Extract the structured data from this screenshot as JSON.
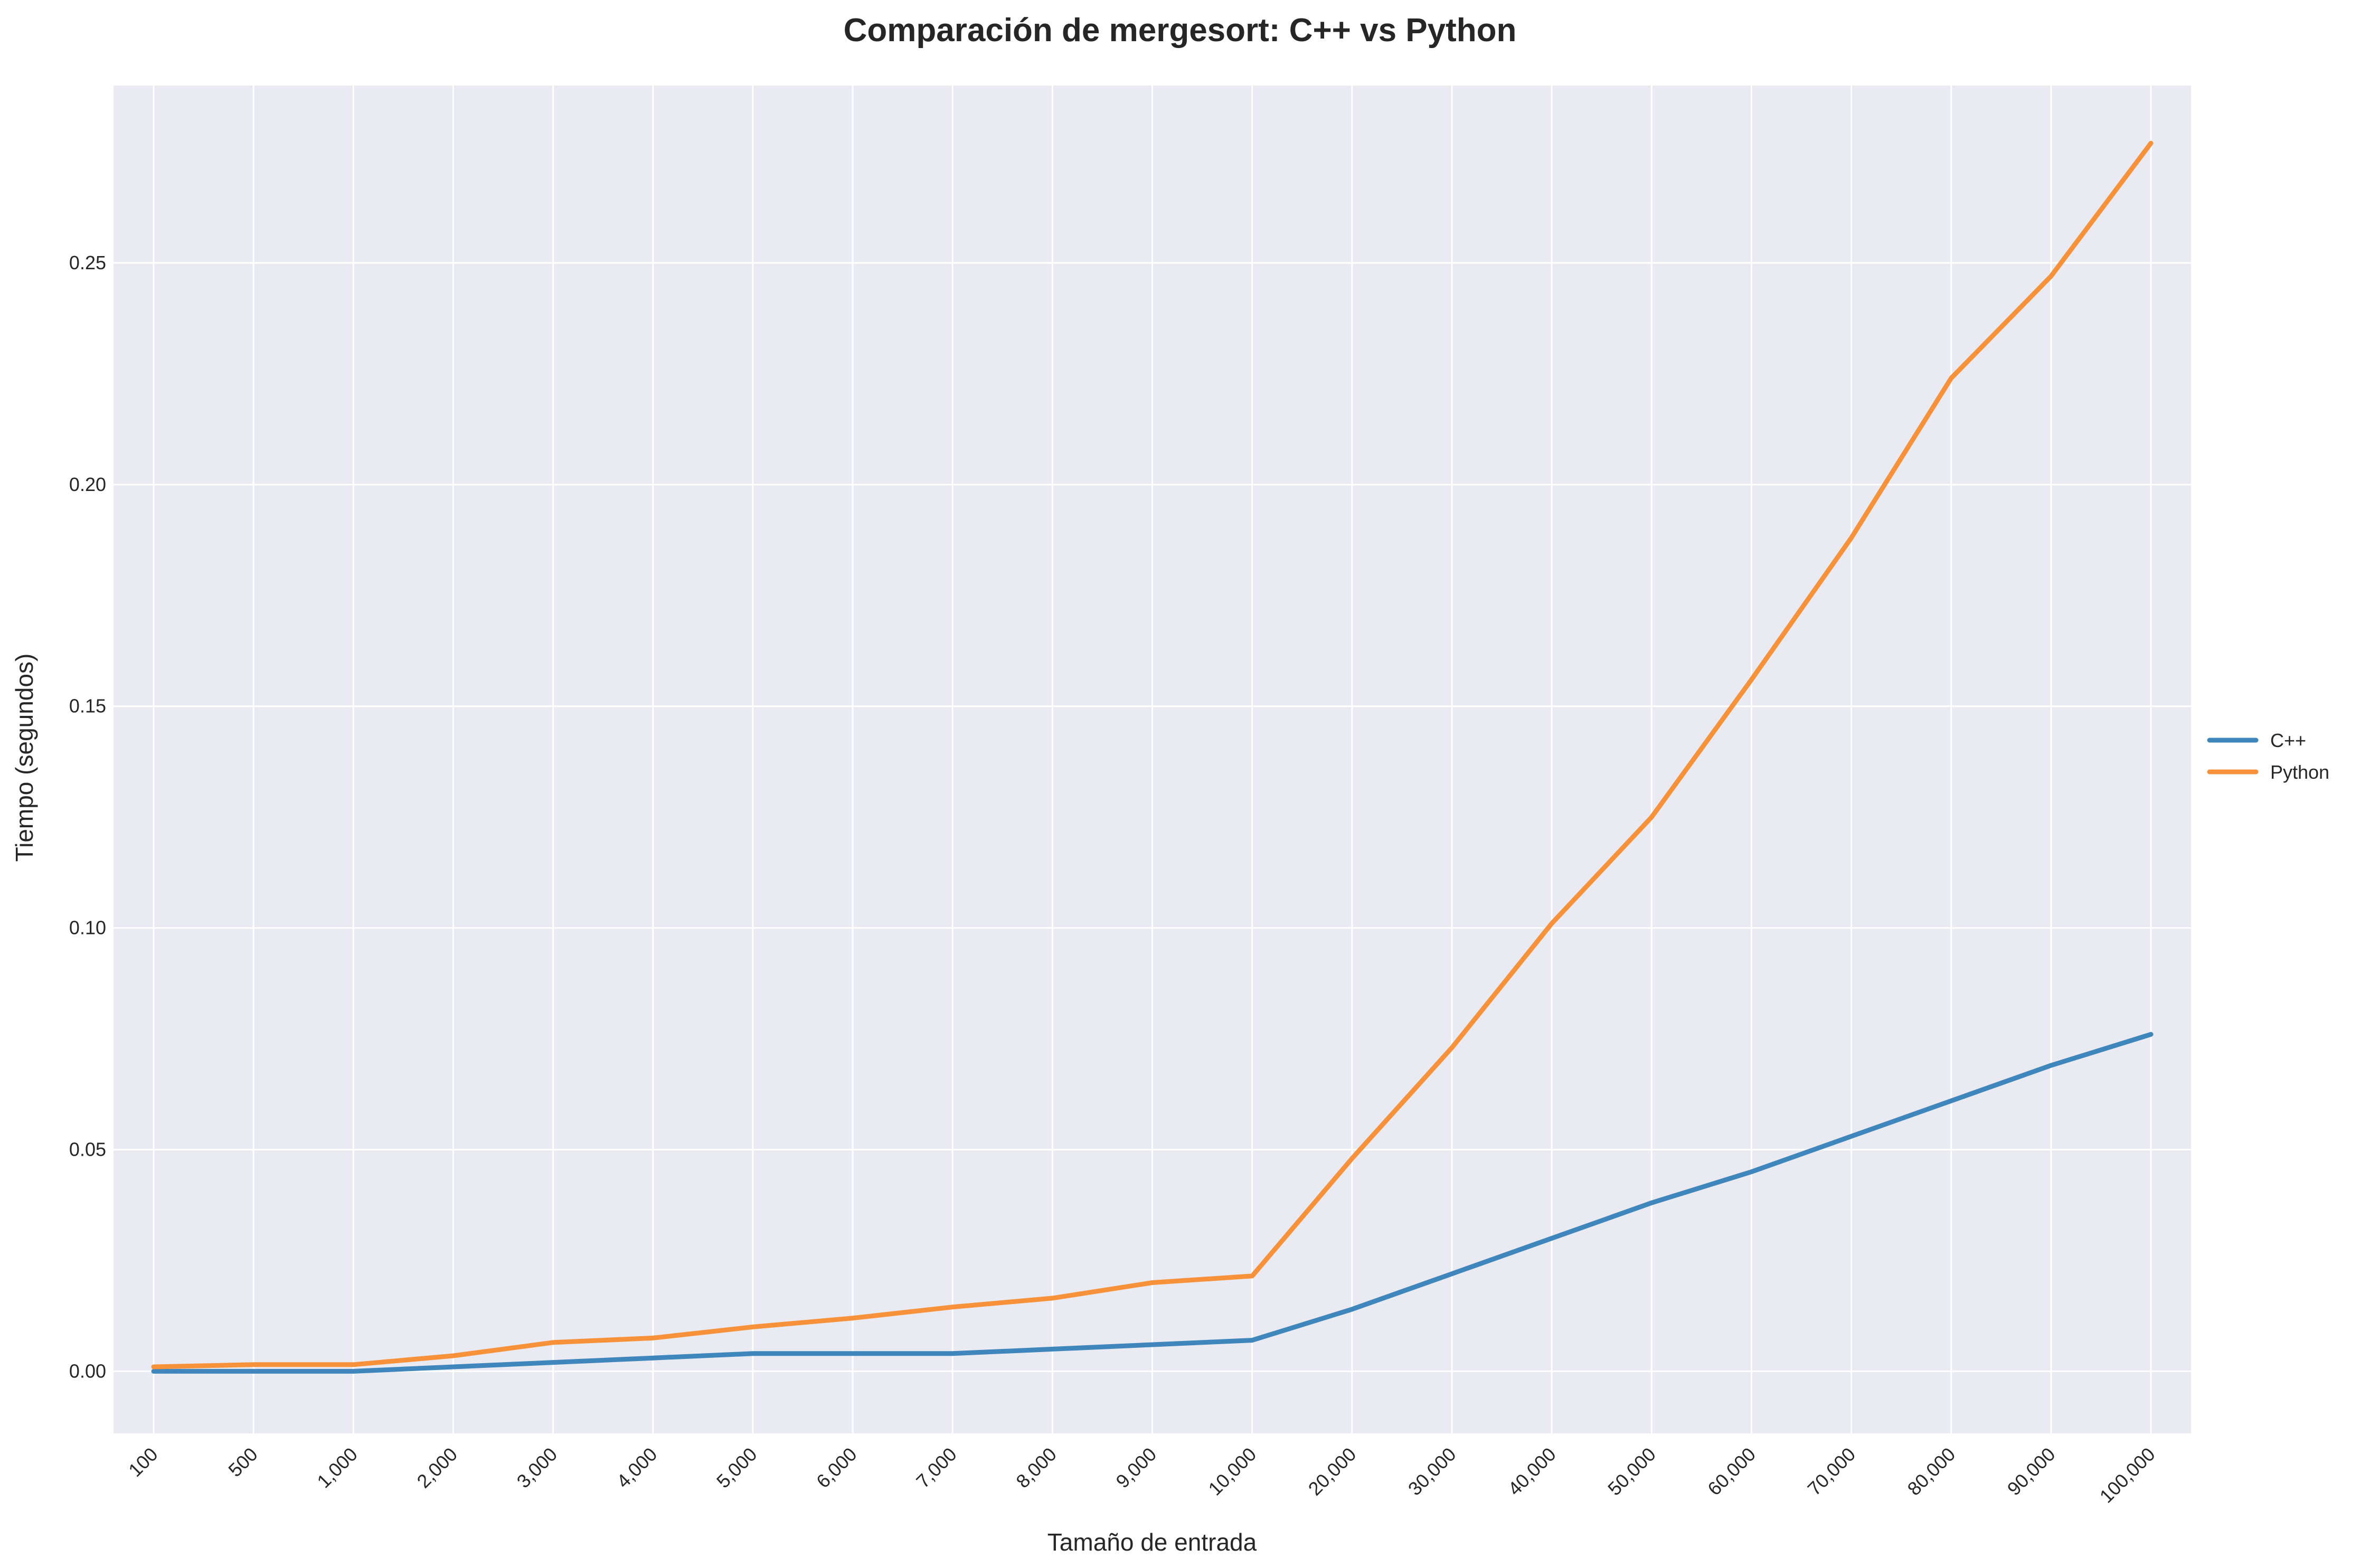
{
  "chart_data": {
    "type": "line",
    "title": "Comparación de mergesort: C++ vs Python",
    "xlabel": "Tamaño de entrada",
    "ylabel": "Tiempo (segundos)",
    "categories": [
      "100",
      "500",
      "1,000",
      "2,000",
      "3,000",
      "4,000",
      "5,000",
      "6,000",
      "7,000",
      "8,000",
      "9,000",
      "10,000",
      "20,000",
      "30,000",
      "40,000",
      "50,000",
      "60,000",
      "70,000",
      "80,000",
      "90,000",
      "100,000"
    ],
    "y_ticks": [
      "0.00",
      "0.05",
      "0.10",
      "0.15",
      "0.20",
      "0.25"
    ],
    "y_tick_values": [
      0.0,
      0.05,
      0.1,
      0.15,
      0.2,
      0.25
    ],
    "ylim": [
      -0.014,
      0.29
    ],
    "grid": true,
    "legend_position": "right",
    "series": [
      {
        "name": "C++",
        "color": "#3f86bc",
        "values": [
          0.0,
          0.0,
          0.0,
          0.001,
          0.002,
          0.003,
          0.004,
          0.004,
          0.004,
          0.005,
          0.006,
          0.007,
          0.014,
          0.022,
          0.03,
          0.038,
          0.045,
          0.053,
          0.061,
          0.069,
          0.076
        ]
      },
      {
        "name": "Python",
        "color": "#f7923a",
        "values": [
          0.001,
          0.0015,
          0.0015,
          0.0035,
          0.0065,
          0.0075,
          0.01,
          0.012,
          0.0145,
          0.0165,
          0.02,
          0.0215,
          0.048,
          0.073,
          0.101,
          0.125,
          0.156,
          0.188,
          0.224,
          0.247,
          0.277
        ]
      }
    ]
  }
}
